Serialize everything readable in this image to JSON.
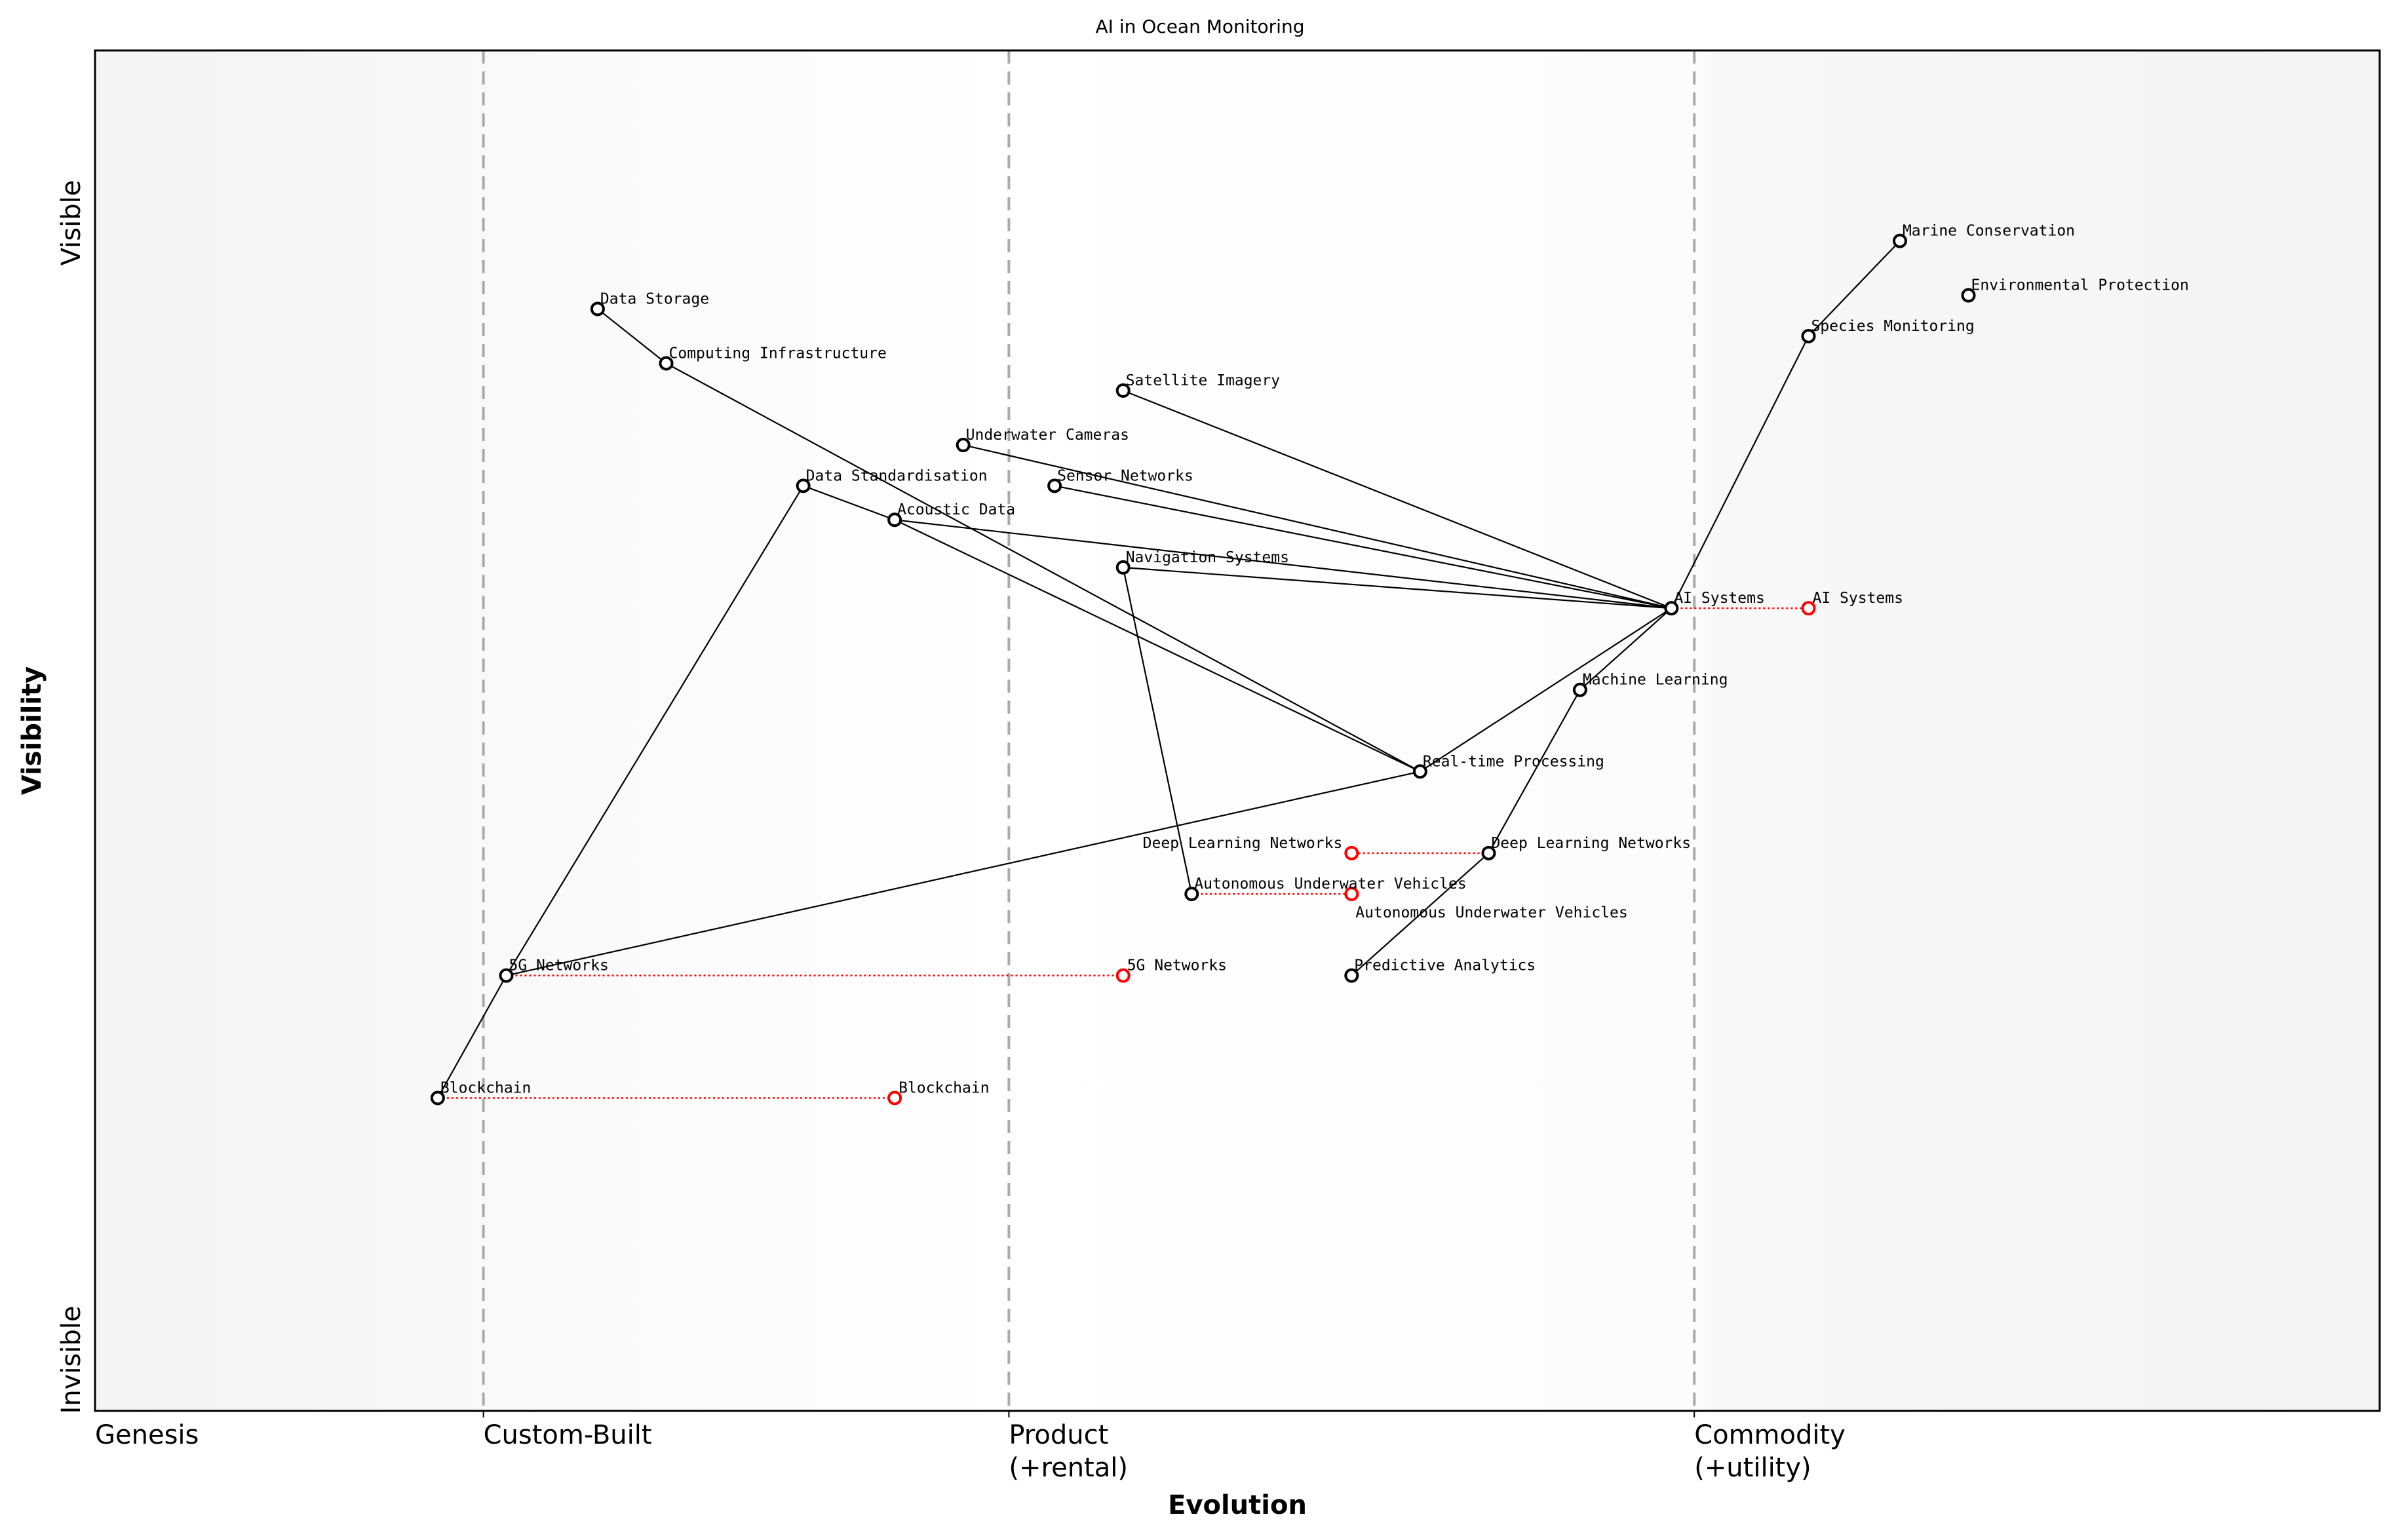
{
  "title": "AI in Ocean Monitoring",
  "x_axis": {
    "label": "Evolution",
    "stages": [
      {
        "label": "Genesis",
        "position": 0.0
      },
      {
        "label": "Custom-Built",
        "position": 0.17
      },
      {
        "label": "Product",
        "sub": "(+rental)",
        "position": 0.4
      },
      {
        "label": "Commodity",
        "sub": "(+utility)",
        "position": 0.7
      }
    ]
  },
  "y_axis": {
    "label": "Visibility",
    "top_label": "Visible",
    "bottom_label": "Invisible"
  },
  "colors": {
    "component": "#000000",
    "evolution": "#ff0000",
    "stage_line": "#aaaaaa"
  },
  "chart_data": {
    "type": "wardley-map",
    "xlim": [
      0,
      1
    ],
    "ylim": [
      0,
      1
    ],
    "components": [
      {
        "name": "Marine Conservation",
        "evolution": 0.79,
        "visibility": 0.86
      },
      {
        "name": "Environmental Protection",
        "evolution": 0.82,
        "visibility": 0.82
      },
      {
        "name": "Species Monitoring",
        "evolution": 0.75,
        "visibility": 0.79
      },
      {
        "name": "AI Systems",
        "evolution": 0.69,
        "visibility": 0.59
      },
      {
        "name": "Data Storage",
        "evolution": 0.22,
        "visibility": 0.81
      },
      {
        "name": "Computing Infrastructure",
        "evolution": 0.25,
        "visibility": 0.77
      },
      {
        "name": "Satellite Imagery",
        "evolution": 0.45,
        "visibility": 0.75
      },
      {
        "name": "Underwater Cameras",
        "evolution": 0.38,
        "visibility": 0.71
      },
      {
        "name": "Sensor Networks",
        "evolution": 0.42,
        "visibility": 0.68
      },
      {
        "name": "Data Standardisation",
        "evolution": 0.31,
        "visibility": 0.68
      },
      {
        "name": "Acoustic Data",
        "evolution": 0.35,
        "visibility": 0.655
      },
      {
        "name": "Navigation Systems",
        "evolution": 0.45,
        "visibility": 0.62
      },
      {
        "name": "Machine Learning",
        "evolution": 0.65,
        "visibility": 0.53
      },
      {
        "name": "Real-time Processing",
        "evolution": 0.58,
        "visibility": 0.47
      },
      {
        "name": "Deep Learning Networks",
        "evolution": 0.61,
        "visibility": 0.41
      },
      {
        "name": "Autonomous Underwater Vehicles",
        "evolution": 0.48,
        "visibility": 0.38
      },
      {
        "name": "5G Networks",
        "evolution": 0.18,
        "visibility": 0.32
      },
      {
        "name": "Predictive Analytics",
        "evolution": 0.55,
        "visibility": 0.32
      },
      {
        "name": "Blockchain",
        "evolution": 0.15,
        "visibility": 0.23
      }
    ],
    "links": [
      [
        "Marine Conservation",
        "Species Monitoring"
      ],
      [
        "Species Monitoring",
        "AI Systems"
      ],
      [
        "AI Systems",
        "Satellite Imagery"
      ],
      [
        "AI Systems",
        "Underwater Cameras"
      ],
      [
        "AI Systems",
        "Sensor Networks"
      ],
      [
        "AI Systems",
        "Acoustic Data"
      ],
      [
        "AI Systems",
        "Navigation Systems"
      ],
      [
        "AI Systems",
        "Real-time Processing"
      ],
      [
        "AI Systems",
        "Machine Learning"
      ],
      [
        "Machine Learning",
        "Deep Learning Networks"
      ],
      [
        "Deep Learning Networks",
        "Predictive Analytics"
      ],
      [
        "Data Storage",
        "Computing Infrastructure"
      ],
      [
        "Computing Infrastructure",
        "Real-time Processing"
      ],
      [
        "Data Standardisation",
        "Acoustic Data"
      ],
      [
        "Acoustic Data",
        "Real-time Processing"
      ],
      [
        "Real-time Processing",
        "5G Networks"
      ],
      [
        "Data Standardisation",
        "5G Networks"
      ],
      [
        "5G Networks",
        "Blockchain"
      ],
      [
        "Navigation Systems",
        "Autonomous Underwater Vehicles"
      ]
    ],
    "evolutions": [
      {
        "name": "AI Systems",
        "to": 0.75
      },
      {
        "name": "Deep Learning Networks",
        "to": 0.55
      },
      {
        "name": "Autonomous Underwater Vehicles",
        "to": 0.55
      },
      {
        "name": "5G Networks",
        "to": 0.45
      },
      {
        "name": "Blockchain",
        "to": 0.35
      }
    ]
  }
}
